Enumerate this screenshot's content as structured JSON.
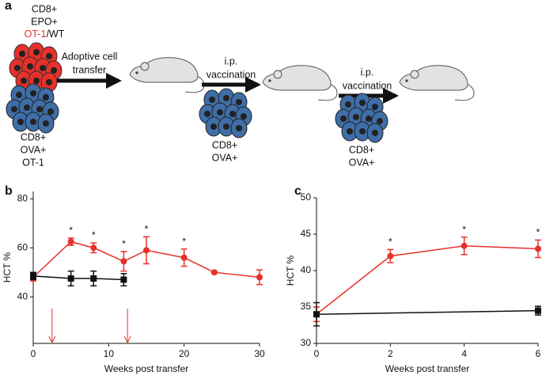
{
  "panel_labels": [
    "a",
    "b",
    "c"
  ],
  "diagram": {
    "top_label": [
      "CD8+",
      "EPO+"
    ],
    "ot1": "OT-1",
    "wt": "/WT",
    "bottom_label": [
      "CD8+",
      "OVA+",
      "OT-1"
    ],
    "arrow_labels": [
      [
        "Adoptive cell",
        "transfer"
      ],
      [
        "i.p.",
        "vaccination"
      ],
      [
        "i.p.",
        "vaccination"
      ]
    ],
    "vaccine_labels": [
      [
        "CD8+",
        "OVA+"
      ],
      [
        "CD8+",
        "OVA+"
      ]
    ]
  },
  "chart_data": [
    {
      "type": "line",
      "xlabel": "Weeks post transfer",
      "ylabel": "HCT %",
      "xlim": [
        0,
        30
      ],
      "xticks": [
        0,
        10,
        20,
        30
      ],
      "ylim": [
        21,
        83
      ],
      "yticks": [
        40,
        60,
        80
      ],
      "series": [
        {
          "color": "#e8302a",
          "marker": "circle",
          "x": [
            0,
            5,
            8,
            12,
            15,
            20,
            24,
            30
          ],
          "values": [
            48,
            62.5,
            60,
            54.5,
            59,
            56,
            50,
            48
          ],
          "errors": [
            1.5,
            1.5,
            2,
            4,
            5.5,
            3.5,
            0.5,
            3
          ]
        },
        {
          "color": "#111111",
          "marker": "square",
          "x": [
            0,
            5,
            8,
            12
          ],
          "values": [
            48.5,
            47.5,
            47.5,
            47
          ],
          "errors": [
            1.5,
            3,
            3,
            2.5
          ]
        }
      ],
      "annotations": [
        {
          "x": 5,
          "text": "*"
        },
        {
          "x": 8,
          "text": "*"
        },
        {
          "x": 12,
          "text": "*"
        },
        {
          "x": 15,
          "text": "*"
        },
        {
          "x": 20,
          "text": "*"
        }
      ],
      "arrow_x": [
        2.5,
        12.5
      ],
      "arrow_color": "#e8302a"
    },
    {
      "type": "line",
      "xlabel": "Weeks post transfer",
      "ylabel": "HCT %",
      "xlim": [
        0,
        6
      ],
      "xticks": [
        0,
        2,
        4,
        6
      ],
      "ylim": [
        30,
        50
      ],
      "yticks": [
        30,
        35,
        40,
        45,
        50
      ],
      "series": [
        {
          "color": "#e8302a",
          "marker": "circle",
          "x": [
            0,
            2,
            4,
            6
          ],
          "values": [
            34,
            42,
            43.4,
            43
          ],
          "errors": [
            1,
            0.9,
            1.2,
            1.2
          ]
        },
        {
          "color": "#111111",
          "marker": "square",
          "x": [
            0,
            6
          ],
          "values": [
            34,
            34.5
          ],
          "errors": [
            1.6,
            0.6
          ]
        }
      ],
      "annotations": [
        {
          "x": 2,
          "text": "*"
        },
        {
          "x": 4,
          "text": "*"
        },
        {
          "x": 6,
          "text": "*"
        }
      ]
    }
  ]
}
